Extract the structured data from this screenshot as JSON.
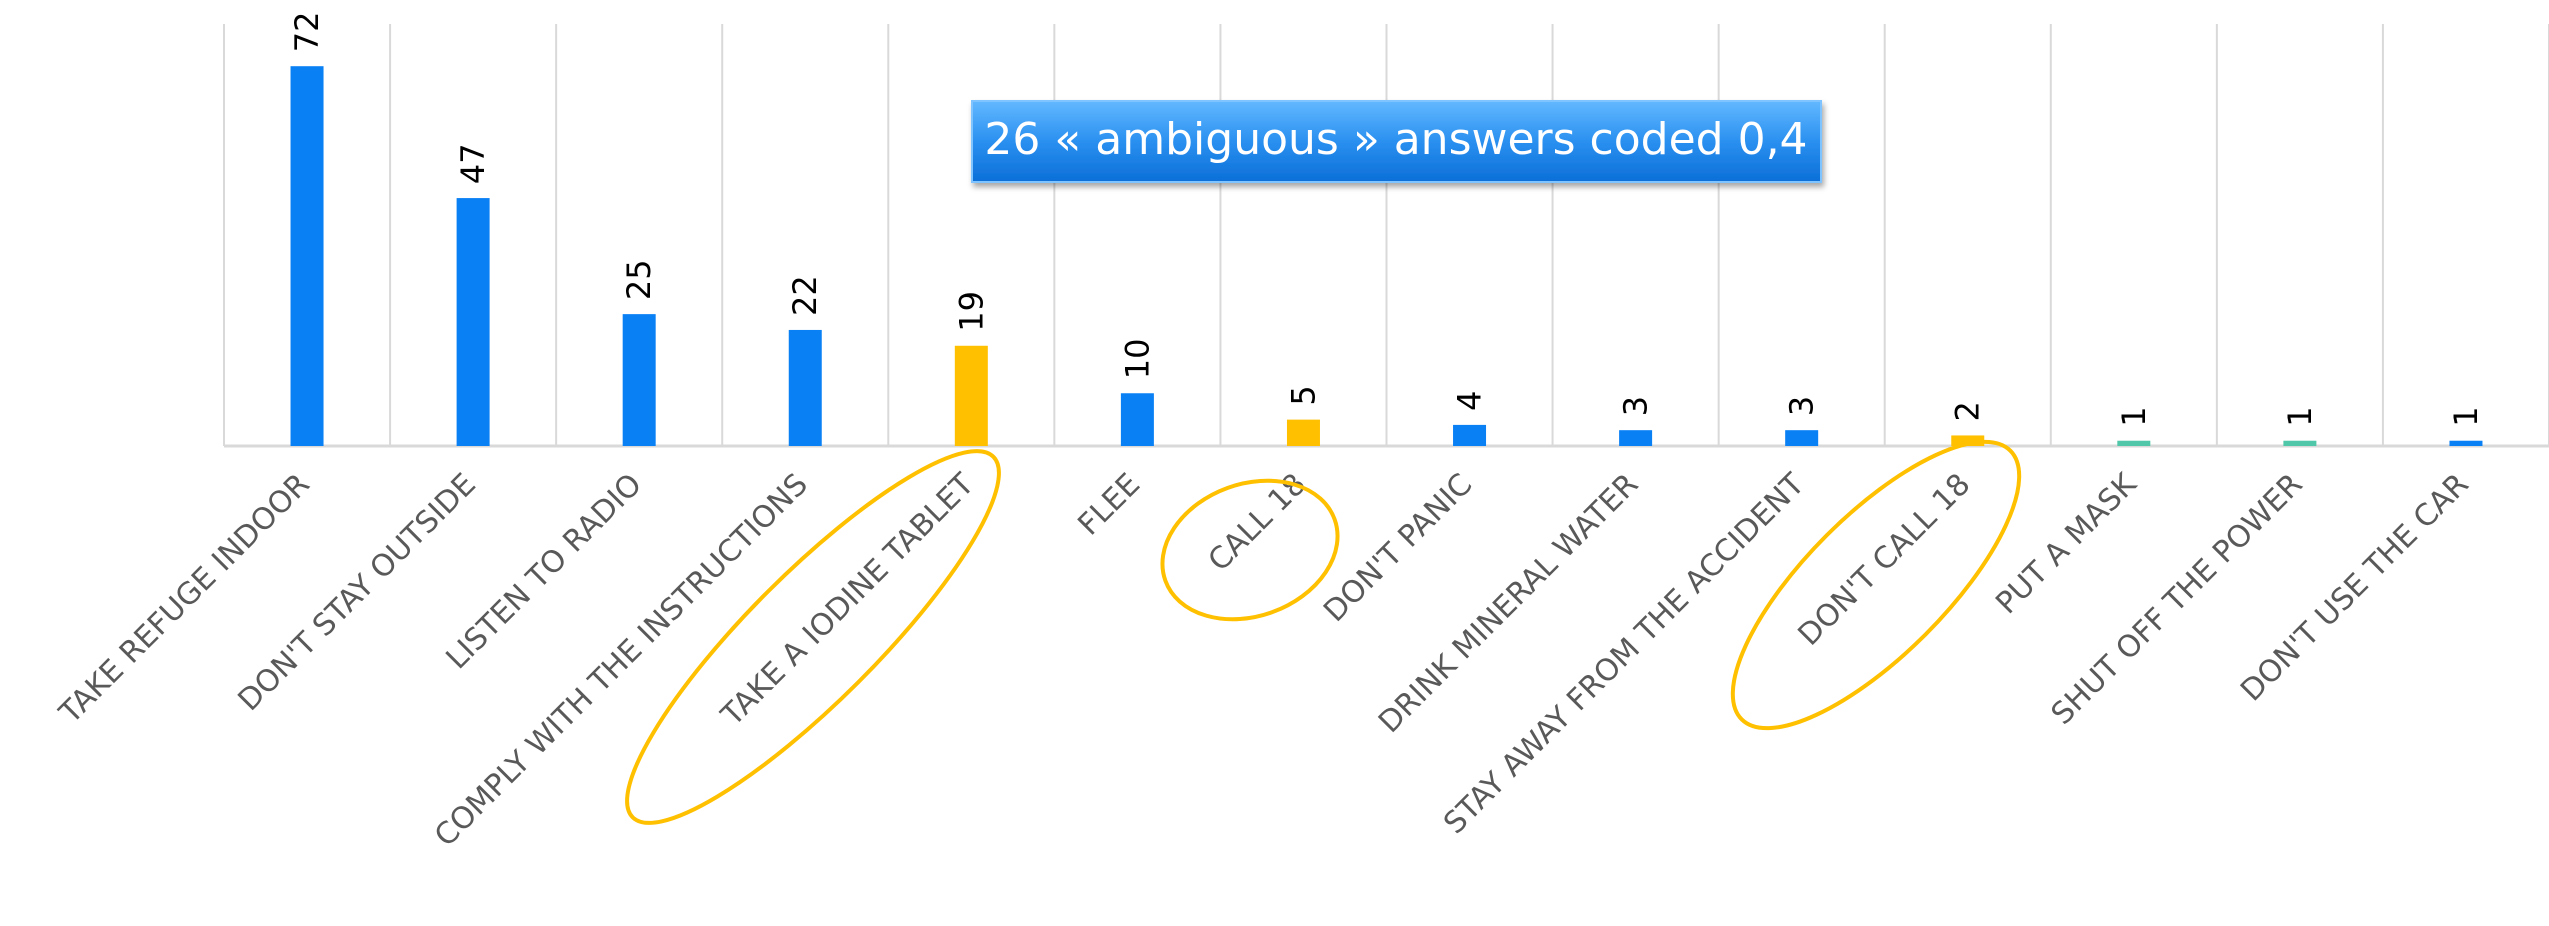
{
  "chart_data": {
    "type": "bar",
    "annotation": "26 « ambiguous » answers coded 0,4",
    "categories": [
      "TAKE REFUGE INDOOR",
      "DON'T STAY OUTSIDE",
      "LISTEN TO RADIO",
      "COMPLY WITH THE INSTRUCTIONS",
      "TAKE A IODINE TABLET",
      "FLEE",
      "CALL 18",
      "DON'T PANIC",
      "DRINK MINERAL WATER",
      "STAY AWAY  FROM THE ACCIDENT",
      "DON'T CALL 18",
      "PUT A MASK",
      "SHUT OFF THE POWER",
      "DON'T USE THE CAR"
    ],
    "values": [
      72,
      47,
      25,
      22,
      19,
      10,
      5,
      4,
      3,
      3,
      2,
      1,
      1,
      1
    ],
    "colors": [
      "#0a80f5",
      "#0a80f5",
      "#0a80f5",
      "#0a80f5",
      "#ffc000",
      "#0a80f5",
      "#ffc000",
      "#0a80f5",
      "#0a80f5",
      "#0a80f5",
      "#ffc000",
      "#4fc7a8",
      "#4fc7a8",
      "#0a80f5"
    ],
    "ylim": [
      0,
      80
    ]
  }
}
